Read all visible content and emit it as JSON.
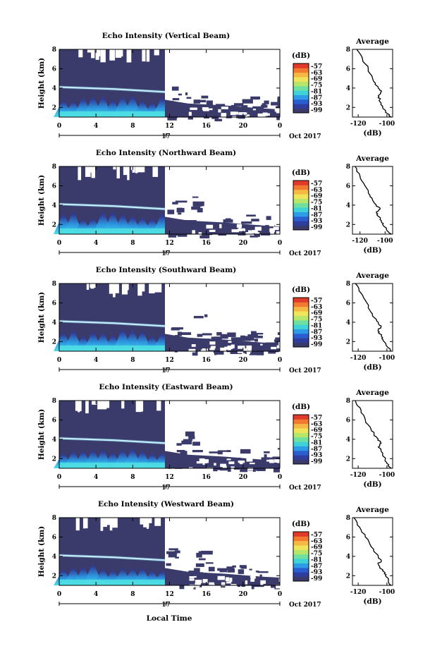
{
  "figure": {
    "xlabel": "Local Time",
    "month_label": "Oct 2017",
    "day_label": "17",
    "colorbar_unit": "(dB)",
    "colorbar_ticks": [
      "-57",
      "-63",
      "-69",
      "-75",
      "-81",
      "-87",
      "-93",
      "-99"
    ],
    "colorscale": [
      "#3a3b6b",
      "#2f3d9c",
      "#2a5ed0",
      "#2c9ce6",
      "#3fd2d6",
      "#6fe0a0",
      "#b8e66a",
      "#f0e55a",
      "#f5b842",
      "#f27a30",
      "#e03a2a"
    ],
    "background_color": "#3a3b6b"
  },
  "chart_data": [
    {
      "type": "heatmap",
      "title": "Echo Intensity (Vertical Beam)",
      "ylabel": "Height (km)",
      "x_ticks": [
        "0",
        "4",
        "8",
        "12",
        "16",
        "20",
        "0"
      ],
      "xlim": [
        0,
        24
      ],
      "y_ticks": [
        "8",
        "6",
        "4",
        "2"
      ],
      "ylim": [
        1,
        8
      ],
      "color_range_db": [
        -99,
        -57
      ],
      "bright_layer_height_km": [
        4.1,
        3.6
      ],
      "average_profile": {
        "title": "Average",
        "xlabel": "(dB)",
        "x_ticks": [
          "-120",
          "-100"
        ],
        "xlim": [
          -124,
          -96
        ],
        "y_ticks": [
          "8",
          "6",
          "4",
          "2"
        ],
        "ylim": [
          1,
          8
        ],
        "height_km": [
          8.0,
          7.0,
          6.0,
          5.0,
          4.5,
          4.0,
          3.6,
          3.2,
          2.8,
          2.4,
          2.0,
          1.5,
          1.0
        ],
        "value_db": [
          -121,
          -117,
          -113,
          -110,
          -108,
          -106,
          -104,
          -106,
          -105,
          -104,
          -103,
          -101,
          -97
        ]
      }
    },
    {
      "type": "heatmap",
      "title": "Echo Intensity (Northward Beam)",
      "ylabel": "Height (km)",
      "x_ticks": [
        "0",
        "4",
        "8",
        "12",
        "16",
        "20",
        "0"
      ],
      "xlim": [
        0,
        24
      ],
      "y_ticks": [
        "8",
        "6",
        "4",
        "2"
      ],
      "ylim": [
        1,
        8
      ],
      "color_range_db": [
        -99,
        -57
      ],
      "bright_layer_height_km": [
        4.1,
        3.6
      ],
      "average_profile": {
        "title": "Average",
        "xlabel": "(dB)",
        "x_ticks": [
          "-120",
          "-100"
        ],
        "xlim": [
          -126,
          -94
        ],
        "y_ticks": [
          "8",
          "6",
          "4",
          "2"
        ],
        "ylim": [
          1,
          8
        ],
        "height_km": [
          8.0,
          7.0,
          6.0,
          5.0,
          4.5,
          4.0,
          3.6,
          3.2,
          2.8,
          2.4,
          2.0,
          1.5,
          1.0
        ],
        "value_db": [
          -124,
          -120,
          -116,
          -112,
          -110,
          -107,
          -104,
          -107,
          -105,
          -103,
          -102,
          -99,
          -95
        ]
      }
    },
    {
      "type": "heatmap",
      "title": "Echo Intensity (Southward Beam)",
      "ylabel": "Height (km)",
      "x_ticks": [
        "0",
        "4",
        "8",
        "12",
        "16",
        "20",
        "0"
      ],
      "xlim": [
        0,
        24
      ],
      "y_ticks": [
        "8",
        "6",
        "4",
        "2"
      ],
      "ylim": [
        1,
        8
      ],
      "color_range_db": [
        -99,
        -57
      ],
      "bright_layer_height_km": [
        4.1,
        3.6
      ],
      "average_profile": {
        "title": "Average",
        "xlabel": "(dB)",
        "x_ticks": [
          "-120",
          "-100"
        ],
        "xlim": [
          -124,
          -96
        ],
        "y_ticks": [
          "8",
          "6",
          "4",
          "2"
        ],
        "ylim": [
          1,
          8
        ],
        "height_km": [
          8.0,
          7.0,
          6.0,
          5.0,
          4.5,
          4.0,
          3.6,
          3.2,
          2.8,
          2.4,
          2.0,
          1.5,
          1.0
        ],
        "value_db": [
          -122,
          -118,
          -114,
          -111,
          -109,
          -106,
          -104,
          -106,
          -105,
          -103,
          -102,
          -100,
          -97
        ]
      }
    },
    {
      "type": "heatmap",
      "title": "Echo Intensity (Eastward Beam)",
      "ylabel": "Height (km)",
      "x_ticks": [
        "0",
        "4",
        "8",
        "12",
        "16",
        "20",
        "0"
      ],
      "xlim": [
        0,
        24
      ],
      "y_ticks": [
        "8",
        "6",
        "4",
        "2"
      ],
      "ylim": [
        1,
        8
      ],
      "color_range_db": [
        -99,
        -57
      ],
      "bright_layer_height_km": [
        4.1,
        3.6
      ],
      "average_profile": {
        "title": "Average",
        "xlabel": "(dB)",
        "x_ticks": [
          "-120",
          "-100"
        ],
        "xlim": [
          -124,
          -96
        ],
        "y_ticks": [
          "8",
          "6",
          "4",
          "2"
        ],
        "ylim": [
          1,
          8
        ],
        "height_km": [
          8.0,
          7.0,
          6.0,
          5.0,
          4.5,
          4.0,
          3.6,
          3.2,
          2.8,
          2.4,
          2.0,
          1.5,
          1.0
        ],
        "value_db": [
          -122,
          -118,
          -115,
          -111,
          -109,
          -106,
          -104,
          -106,
          -104,
          -103,
          -101,
          -100,
          -97
        ]
      }
    },
    {
      "type": "heatmap",
      "title": "Echo Intensity (Westward Beam)",
      "ylabel": "Height (km)",
      "x_ticks": [
        "0",
        "4",
        "8",
        "12",
        "16",
        "20",
        "0"
      ],
      "xlim": [
        0,
        24
      ],
      "y_ticks": [
        "8",
        "6",
        "4",
        "2"
      ],
      "ylim": [
        1,
        8
      ],
      "color_range_db": [
        -99,
        -57
      ],
      "bright_layer_height_km": [
        4.1,
        3.6
      ],
      "average_profile": {
        "title": "Average",
        "xlabel": "(dB)",
        "x_ticks": [
          "-120",
          "-100"
        ],
        "xlim": [
          -124,
          -96
        ],
        "y_ticks": [
          "8",
          "6",
          "4",
          "2"
        ],
        "ylim": [
          1,
          8
        ],
        "height_km": [
          8.0,
          7.0,
          6.0,
          5.0,
          4.5,
          4.0,
          3.6,
          3.2,
          2.8,
          2.4,
          2.0,
          1.5,
          1.0
        ],
        "value_db": [
          -123,
          -119,
          -115,
          -111,
          -109,
          -106,
          -104,
          -106,
          -105,
          -102,
          -101,
          -99,
          -97
        ]
      }
    }
  ]
}
